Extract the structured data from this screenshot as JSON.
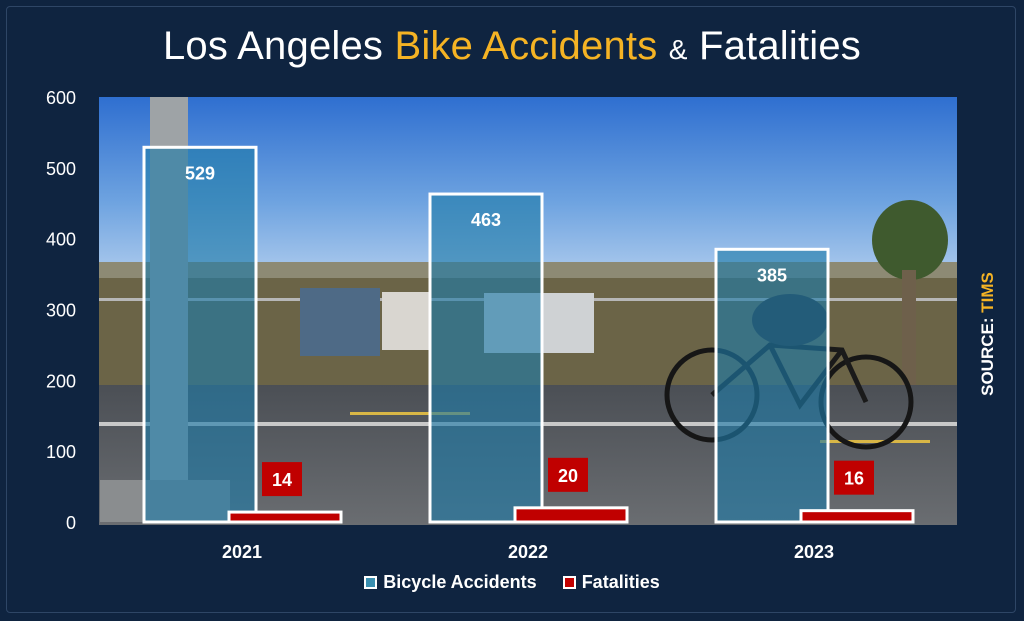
{
  "title": {
    "prefix": "Los Angeles",
    "highlight": "Bike Accidents",
    "amp": "&",
    "suffix": "Fatalities"
  },
  "source": {
    "label": "SOURCE:",
    "value": "TIMS"
  },
  "colors": {
    "background": "#0f2440",
    "highlight": "#f5b324",
    "accidents_fill": "#1f7aa8",
    "fatalities_fill": "#c00000",
    "bar_border": "#ffffff"
  },
  "chart_data": {
    "type": "bar",
    "title": "Los Angeles Bike Accidents & Fatalities",
    "categories": [
      "2021",
      "2022",
      "2023"
    ],
    "series": [
      {
        "name": "Bicycle Accidents",
        "values": [
          529,
          463,
          385
        ]
      },
      {
        "name": "Fatalities",
        "values": [
          14,
          20,
          16
        ]
      }
    ],
    "ylim": [
      0,
      600
    ],
    "yticks": [
      0,
      100,
      200,
      300,
      400,
      500,
      600
    ],
    "legend_position": "bottom",
    "grid": false,
    "background": "photo of cyclist on road"
  }
}
